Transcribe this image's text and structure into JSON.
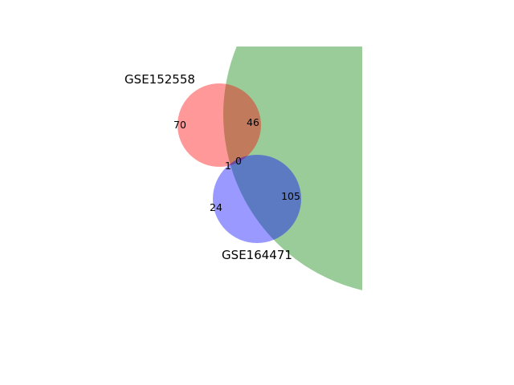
{
  "venn": {
    "sets": [
      {
        "name": "GSE152558",
        "color": "#ff0000"
      },
      {
        "name": "GSE164471",
        "color": "#0000ff"
      },
      {
        "name": "",
        "color": "#008000"
      }
    ],
    "region_counts": {
      "only_GSE152558": "70",
      "GSE152558_and_third": "46",
      "GSE152558_and_GSE164471": "1",
      "all_three": "0",
      "only_GSE164471": "24",
      "GSE164471_and_third": "105"
    }
  }
}
